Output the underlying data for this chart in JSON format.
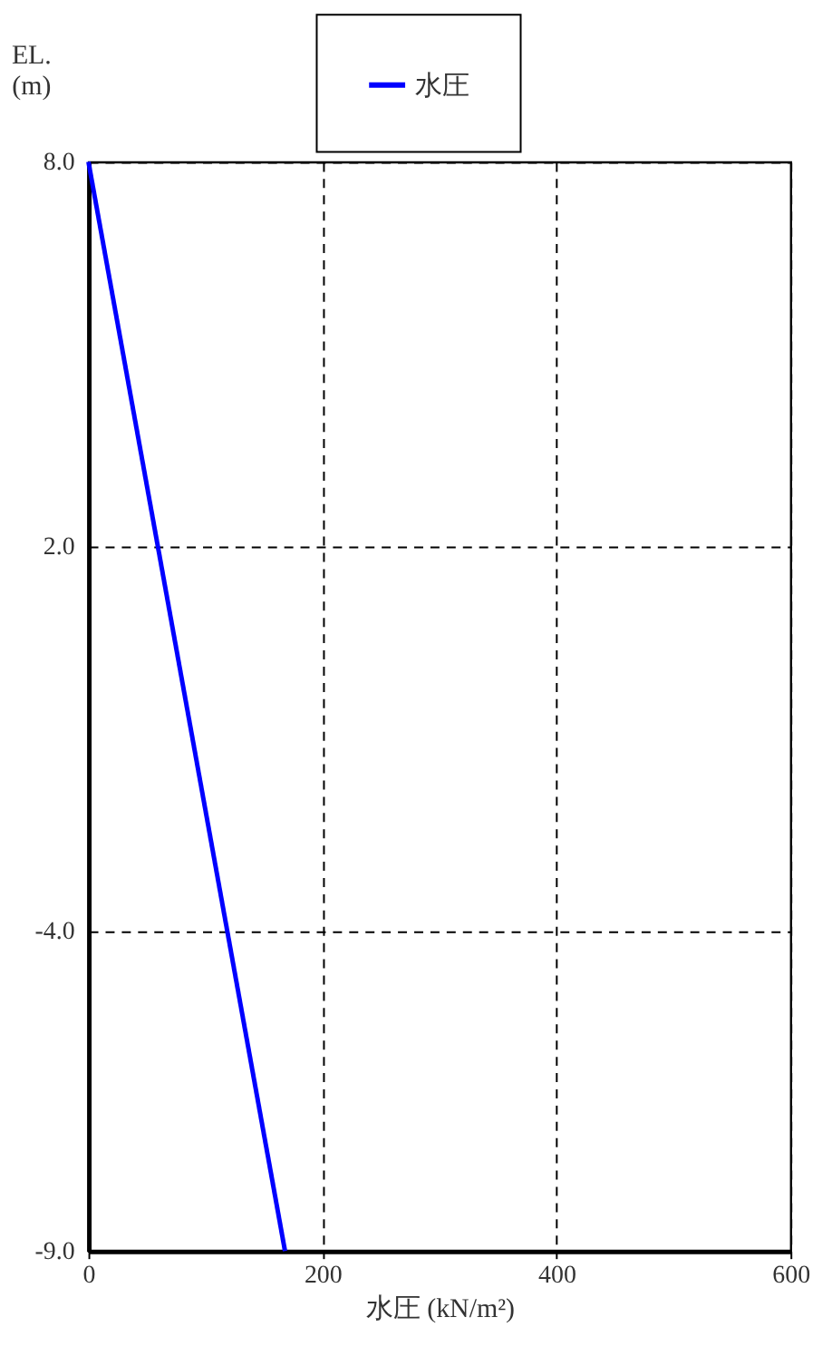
{
  "chart_data": {
    "type": "line",
    "xlabel": "水圧 (kN/m²)",
    "ylabel": "EL.\n(m)",
    "x": [
      0,
      168
    ],
    "series": [
      {
        "name": "水圧",
        "color": "#0000ff",
        "values": [
          8.0,
          -9.0
        ]
      }
    ],
    "xlim": [
      0,
      600
    ],
    "xticks": [
      0,
      200,
      400,
      600
    ],
    "ylim": [
      -9.0,
      8.0
    ],
    "yticks": [
      {
        "value": 8.0,
        "label": "8.0"
      },
      {
        "value": 2.0,
        "label": "2.0"
      },
      {
        "value": -4.0,
        "label": "-4.0"
      },
      {
        "value": -9.0,
        "label": "-9.0"
      }
    ],
    "grid": true,
    "legend": "top",
    "line_style": "solid",
    "marker": "none"
  }
}
